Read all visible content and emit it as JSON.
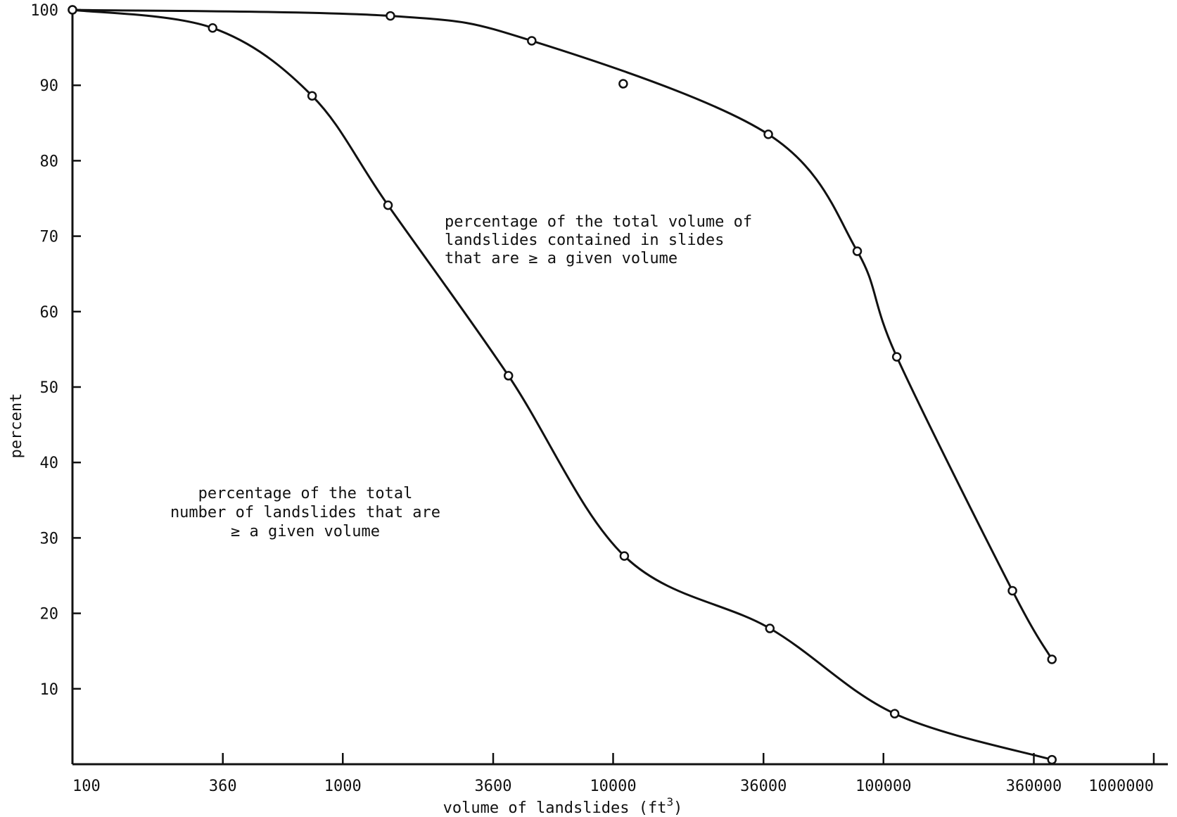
{
  "chart_data": {
    "type": "line",
    "title": "",
    "xlabel": "volume of landslides (ft",
    "xlabel_superscript": "3",
    "xlabel_suffix": ")",
    "ylabel": "percent",
    "x_scale": "log",
    "xlim": [
      100,
      1000000
    ],
    "ylim": [
      0,
      100
    ],
    "x_ticks": [
      100,
      360,
      1000,
      3600,
      10000,
      36000,
      100000,
      360000,
      1000000
    ],
    "x_tick_labels": [
      "100",
      "360",
      "1000",
      "3600",
      "10000",
      "36000",
      "100000",
      "360000",
      "1000000"
    ],
    "y_ticks": [
      10,
      20,
      30,
      40,
      50,
      60,
      70,
      80,
      90,
      100
    ],
    "y_tick_labels": [
      "10",
      "20",
      "30",
      "40",
      "50",
      "60",
      "70",
      "80",
      "90",
      "100"
    ],
    "grid": false,
    "legend": "none",
    "series": [
      {
        "id": "number",
        "x": [
          100,
          330,
          770,
          1470,
          4100,
          11000,
          38000,
          110000,
          420000
        ],
        "y": [
          100,
          97.6,
          88.6,
          74.1,
          51.5,
          27.6,
          18.0,
          6.7,
          0.6
        ]
      },
      {
        "id": "volume",
        "x": [
          100,
          1500,
          5000,
          10900,
          37500,
          80000,
          112000,
          300000,
          420000
        ],
        "y": [
          100,
          99.2,
          95.9,
          90.2,
          83.5,
          68.0,
          54.0,
          23.0,
          13.9
        ]
      }
    ],
    "annotations": [
      {
        "id": "volume-annotation",
        "lines": [
          "percentage of the total volume of",
          "landslides contained in slides",
          "that are ≥ a given volume"
        ]
      },
      {
        "id": "number-annotation",
        "lines": [
          "percentage of the total",
          "number of landslides that are",
          "≥ a given volume"
        ]
      }
    ]
  }
}
